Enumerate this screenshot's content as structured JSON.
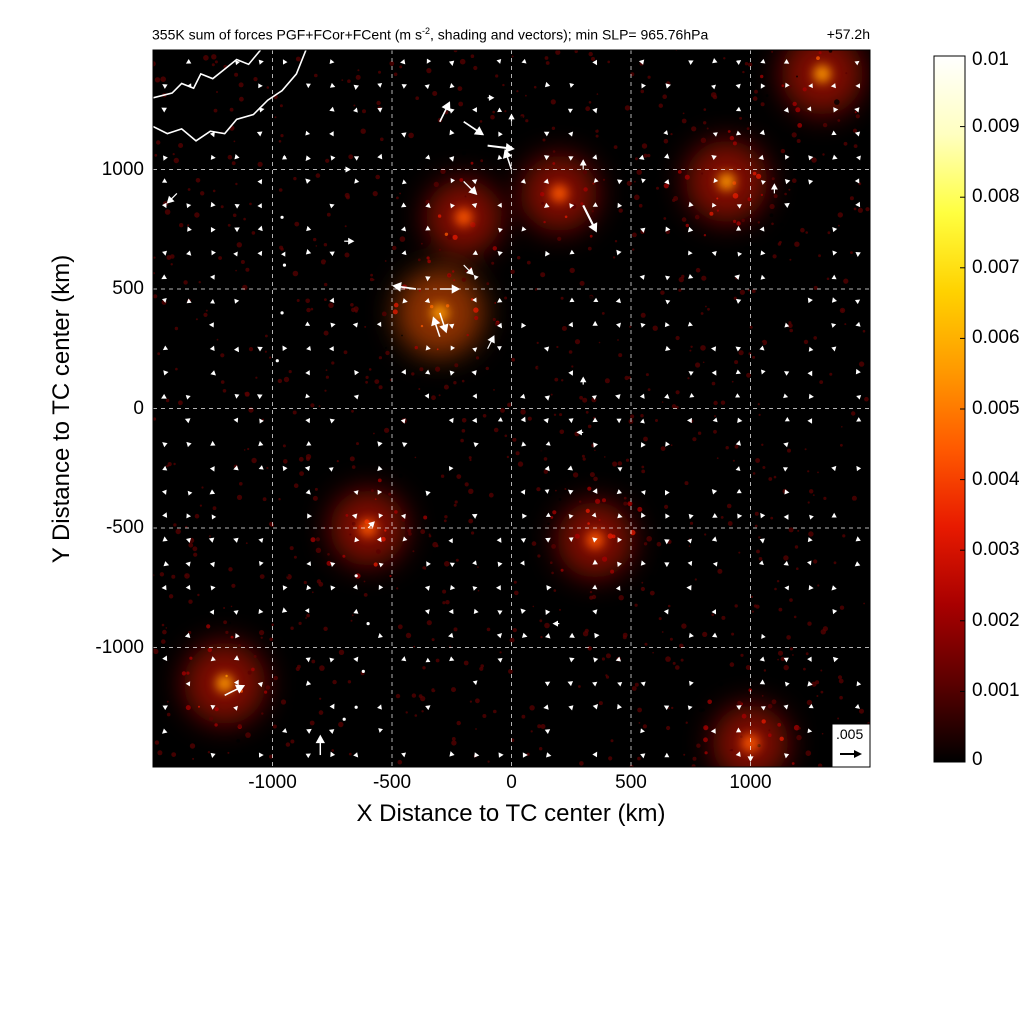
{
  "title_left": "355K sum of forces PGF+FCor+FCent (m s",
  "title_left_sup": "-2",
  "title_left_tail": ", shading and vectors); min SLP= 965.76hPa",
  "title_right": "+57.2h",
  "xlabel": "X Distance to TC center (km)",
  "ylabel": "Y Distance to TC center (km)",
  "reference_vector_label": ".005",
  "colors": {
    "background": "#000000",
    "vectors": "#ffffff",
    "coastline": "#ffffff",
    "grid": "#ffffff"
  },
  "chart_data": {
    "type": "heatmap",
    "variable": "sum of forces PGF+FCor+FCent",
    "level": "355K",
    "units": "m s-2",
    "min_slp_hPa": 965.76,
    "forecast_time": "+57.2h",
    "xlim": [
      -1500,
      1500
    ],
    "ylim": [
      -1500,
      1500
    ],
    "xticks": [
      -1000,
      -500,
      0,
      500,
      1000
    ],
    "xtick_labels": [
      "-1000",
      "-500",
      "0",
      "500",
      "1000"
    ],
    "yticks": [
      -1000,
      -500,
      0,
      500,
      1000
    ],
    "ytick_labels": [
      "-1000",
      "-500",
      "0",
      "500",
      "1000"
    ],
    "grid": true,
    "colorbar": {
      "range": [
        0,
        0.01
      ],
      "ticks": [
        0,
        0.001,
        0.002,
        0.003,
        0.004,
        0.005,
        0.006,
        0.007,
        0.008,
        0.009,
        0.01
      ],
      "tick_labels": [
        "0",
        "0.001",
        "0.002",
        "0.003",
        "0.004",
        "0.005",
        "0.006",
        "0.007",
        "0.008",
        "0.009",
        "0.01"
      ],
      "colormap": [
        "#000000",
        "#5a0000",
        "#a80000",
        "#e81a00",
        "#ff5a00",
        "#ff9a00",
        "#ffd200",
        "#ffff40",
        "#ffffc0",
        "#ffffff"
      ]
    },
    "hotspots": [
      {
        "x": -300,
        "y": 400,
        "value": 0.006
      },
      {
        "x": -200,
        "y": 800,
        "value": 0.004
      },
      {
        "x": 200,
        "y": 900,
        "value": 0.004
      },
      {
        "x": 900,
        "y": 950,
        "value": 0.005
      },
      {
        "x": -1200,
        "y": -1150,
        "value": 0.005
      },
      {
        "x": 1000,
        "y": -1400,
        "value": 0.004
      },
      {
        "x": 1300,
        "y": 1400,
        "value": 0.005
      },
      {
        "x": -600,
        "y": -500,
        "value": 0.004
      },
      {
        "x": 350,
        "y": -550,
        "value": 0.004
      }
    ],
    "reference_vector": 0.005,
    "vectors": [
      {
        "x": -300,
        "y": 1200,
        "u": 0.0015,
        "v": 0.003
      },
      {
        "x": -200,
        "y": 1200,
        "u": 0.003,
        "v": -0.002
      },
      {
        "x": -100,
        "y": 1100,
        "u": 0.004,
        "v": -0.0005
      },
      {
        "x": 0,
        "y": 1000,
        "u": -0.001,
        "v": 0.003
      },
      {
        "x": -200,
        "y": 950,
        "u": 0.002,
        "v": -0.002
      },
      {
        "x": 300,
        "y": 850,
        "u": 0.002,
        "v": -0.004
      },
      {
        "x": -400,
        "y": 500,
        "u": -0.0035,
        "v": 0.0005
      },
      {
        "x": -300,
        "y": 500,
        "u": 0.003,
        "v": 0
      },
      {
        "x": -300,
        "y": 400,
        "u": 0.001,
        "v": -0.003
      },
      {
        "x": -300,
        "y": 300,
        "u": -0.001,
        "v": 0.003
      },
      {
        "x": -100,
        "y": 250,
        "u": 0.001,
        "v": 0.002
      },
      {
        "x": -200,
        "y": 600,
        "u": 0.0015,
        "v": -0.0015
      },
      {
        "x": -1200,
        "y": -1200,
        "u": 0.003,
        "v": 0.0015
      },
      {
        "x": -800,
        "y": -1450,
        "u": 0,
        "v": 0.003
      },
      {
        "x": 300,
        "y": 1000,
        "u": 0,
        "v": 0.0015
      },
      {
        "x": 1100,
        "y": 900,
        "u": 0,
        "v": 0.0015
      },
      {
        "x": -1400,
        "y": 900,
        "u": -0.0015,
        "v": -0.0015
      },
      {
        "x": -600,
        "y": -500,
        "u": 0.001,
        "v": 0.001
      },
      {
        "x": -700,
        "y": 700,
        "u": 0.0015,
        "v": 0
      },
      {
        "x": -700,
        "y": 1000,
        "u": 0.001,
        "v": 0
      },
      {
        "x": 300,
        "y": -100,
        "u": -0.001,
        "v": 0
      },
      {
        "x": 300,
        "y": 100,
        "u": 0,
        "v": 0.0012
      },
      {
        "x": -100,
        "y": 1300,
        "u": 0.001,
        "v": 0
      },
      {
        "x": 0,
        "y": 1200,
        "u": 0,
        "v": 0.0012
      },
      {
        "x": 200,
        "y": -900,
        "u": -0.001,
        "v": 0
      },
      {
        "x": 1000,
        "y": -1450,
        "u": 0,
        "v": -0.001
      }
    ]
  }
}
